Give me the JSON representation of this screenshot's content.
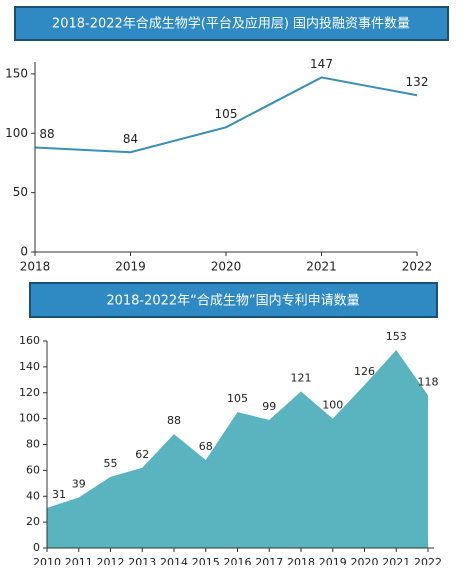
{
  "chart_data": [
    {
      "type": "line",
      "title": "2018-2022年合成生物学(平台及应用层) 国内投融资事件数量",
      "x": [
        2018,
        2019,
        2020,
        2021,
        2022
      ],
      "values": [
        88,
        84,
        105,
        147,
        132
      ],
      "color": "#3a8fb7",
      "ylim": [
        0,
        160
      ],
      "yticks": [
        0,
        50,
        100,
        150
      ],
      "xlim": [
        2018,
        2022
      ],
      "xticks": [
        2018,
        2019,
        2020,
        2021,
        2022
      ],
      "grid": false
    },
    {
      "type": "area",
      "title": "2018-2022年“合成生物”国内专利申请数量",
      "x": [
        2010,
        2011,
        2012,
        2013,
        2014,
        2015,
        2016,
        2017,
        2018,
        2019,
        2020,
        2021,
        2022
      ],
      "values": [
        31,
        39,
        55,
        62,
        88,
        68,
        105,
        99,
        121,
        100,
        126,
        153,
        118
      ],
      "color": "#5ab4c0",
      "ylim": [
        0,
        160
      ],
      "yticks": [
        0,
        20,
        40,
        60,
        80,
        100,
        120,
        140,
        160
      ],
      "xlim": [
        2010,
        2022
      ],
      "xticks": [
        2010,
        2011,
        2012,
        2013,
        2014,
        2015,
        2016,
        2017,
        2018,
        2019,
        2020,
        2021,
        2022
      ],
      "grid": false
    }
  ]
}
